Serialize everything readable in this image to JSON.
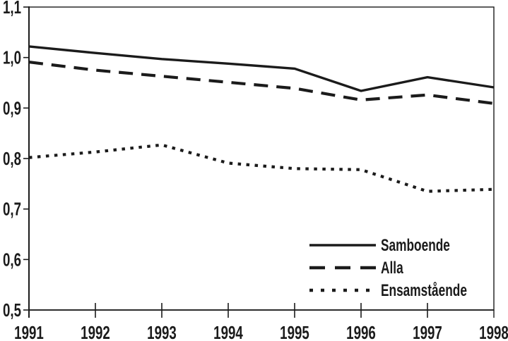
{
  "figure": {
    "background": "#ffffff",
    "ink": "#1b1b1b"
  },
  "chart_data": {
    "type": "line",
    "x": [
      1991,
      1992,
      1993,
      1994,
      1995,
      1996,
      1997,
      1998
    ],
    "x_tick_labels": [
      "1991",
      "1992",
      "1993",
      "1994",
      "1995",
      "1996",
      "1997",
      "1998"
    ],
    "y_axis": {
      "min": 0.5,
      "max": 1.1,
      "tick_step": 0.1,
      "tick_labels": [
        "1,1",
        "1,0",
        "0,9",
        "0,8",
        "0,7",
        "0,6",
        "0,5"
      ]
    },
    "series": [
      {
        "name": "Samboende",
        "style": "solid",
        "values": [
          1.022,
          1.009,
          0.997,
          0.988,
          0.978,
          0.934,
          0.961,
          0.941
        ]
      },
      {
        "name": "Alla",
        "style": "dashed",
        "values": [
          0.991,
          0.975,
          0.963,
          0.951,
          0.939,
          0.916,
          0.926,
          0.909
        ]
      },
      {
        "name": "Ensamstående",
        "style": "dotted",
        "values": [
          0.802,
          0.813,
          0.827,
          0.791,
          0.78,
          0.778,
          0.735,
          0.739
        ]
      }
    ],
    "legend": {
      "position": "bottom-right",
      "entries": [
        "Samboende",
        "Alla",
        "Ensamstående"
      ]
    },
    "grid": false,
    "title": "",
    "xlabel": "",
    "ylabel": ""
  }
}
